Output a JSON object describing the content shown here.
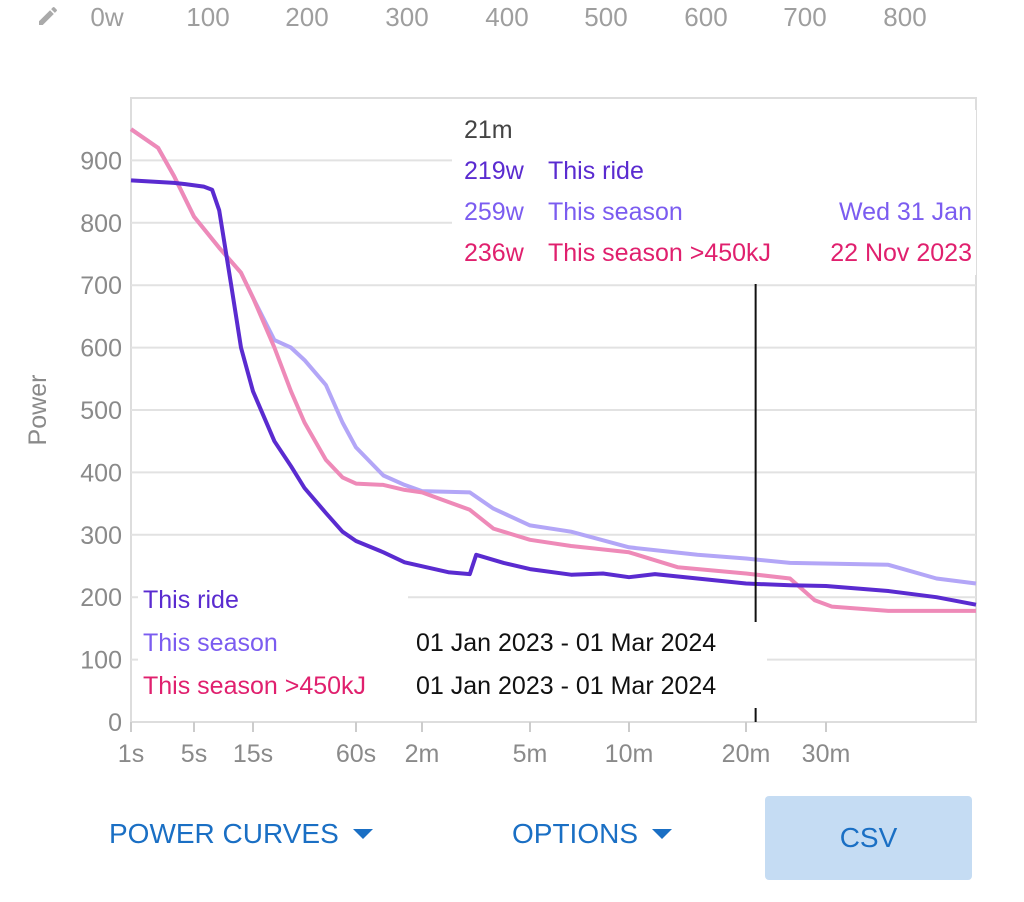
{
  "top_scale": {
    "icon": "pencil-icon",
    "labels": [
      "0w",
      "100",
      "200",
      "300",
      "400",
      "500",
      "600",
      "700",
      "800"
    ]
  },
  "tooltip": {
    "time": "21m",
    "rows": [
      {
        "value": "219w",
        "label": "This ride",
        "date": "",
        "color": "#5a2bd0"
      },
      {
        "value": "259w",
        "label": "This season",
        "date": "Wed 31 Jan",
        "color": "#7b5cf0"
      },
      {
        "value": "236w",
        "label": "This season >450kJ",
        "date": "22 Nov 2023",
        "color": "#e0206e"
      }
    ]
  },
  "legend": [
    {
      "label": "This ride",
      "range": "",
      "color": "#5a2bd0"
    },
    {
      "label": "This season",
      "range": "01 Jan 2023 - 01 Mar 2024",
      "color": "#7b5cf0"
    },
    {
      "label": "This season >450kJ",
      "range": "01 Jan 2023 - 01 Mar 2024",
      "color": "#e0206e"
    }
  ],
  "buttons": {
    "power_curves": "POWER CURVES",
    "options": "OPTIONS",
    "csv": "CSV"
  },
  "chart_data": {
    "type": "line",
    "ylabel": "Power",
    "ylim": [
      0,
      1000
    ],
    "yticks": [
      0,
      100,
      200,
      300,
      400,
      500,
      600,
      700,
      800,
      900
    ],
    "x_scale": "log-like duration (seconds)",
    "xticks": [
      {
        "s": 1,
        "label": "1s"
      },
      {
        "s": 5,
        "label": "5s"
      },
      {
        "s": 15,
        "label": "15s"
      },
      {
        "s": 60,
        "label": "60s"
      },
      {
        "s": 120,
        "label": "2m"
      },
      {
        "s": 300,
        "label": "5m"
      },
      {
        "s": 600,
        "label": "10m"
      },
      {
        "s": 1200,
        "label": "20m"
      },
      {
        "s": 1800,
        "label": "30m"
      }
    ],
    "grid": true,
    "cursor_seconds": 1260,
    "series": [
      {
        "name": "This season",
        "color": "#b3a6f7",
        "points": [
          [
            1,
            950
          ],
          [
            2,
            920
          ],
          [
            3,
            875
          ],
          [
            5,
            810
          ],
          [
            8,
            760
          ],
          [
            12,
            720
          ],
          [
            15,
            680
          ],
          [
            20,
            612
          ],
          [
            25,
            600
          ],
          [
            30,
            580
          ],
          [
            40,
            540
          ],
          [
            50,
            480
          ],
          [
            60,
            440
          ],
          [
            80,
            395
          ],
          [
            100,
            380
          ],
          [
            120,
            370
          ],
          [
            180,
            368
          ],
          [
            220,
            342
          ],
          [
            300,
            315
          ],
          [
            400,
            305
          ],
          [
            600,
            280
          ],
          [
            900,
            268
          ],
          [
            1200,
            262
          ],
          [
            1500,
            255
          ],
          [
            2400,
            252
          ],
          [
            3000,
            230
          ],
          [
            3600,
            222
          ]
        ]
      },
      {
        "name": "This season >450kJ",
        "color": "#ee8ab8",
        "points": [
          [
            1,
            950
          ],
          [
            2,
            920
          ],
          [
            3,
            875
          ],
          [
            5,
            810
          ],
          [
            8,
            760
          ],
          [
            12,
            720
          ],
          [
            15,
            680
          ],
          [
            20,
            600
          ],
          [
            25,
            530
          ],
          [
            30,
            480
          ],
          [
            40,
            420
          ],
          [
            50,
            392
          ],
          [
            60,
            382
          ],
          [
            80,
            380
          ],
          [
            100,
            372
          ],
          [
            120,
            368
          ],
          [
            180,
            340
          ],
          [
            220,
            310
          ],
          [
            300,
            292
          ],
          [
            400,
            282
          ],
          [
            600,
            272
          ],
          [
            800,
            248
          ],
          [
            1200,
            238
          ],
          [
            1500,
            230
          ],
          [
            1700,
            195
          ],
          [
            1850,
            185
          ],
          [
            2400,
            178
          ],
          [
            3600,
            178
          ]
        ]
      },
      {
        "name": "This ride",
        "color": "#5a2bd0",
        "points": [
          [
            1,
            868
          ],
          [
            3,
            864
          ],
          [
            4,
            862
          ],
          [
            6,
            858
          ],
          [
            7,
            853
          ],
          [
            8,
            820
          ],
          [
            10,
            700
          ],
          [
            12,
            600
          ],
          [
            15,
            530
          ],
          [
            20,
            450
          ],
          [
            25,
            410
          ],
          [
            30,
            375
          ],
          [
            40,
            335
          ],
          [
            50,
            305
          ],
          [
            60,
            290
          ],
          [
            80,
            272
          ],
          [
            100,
            256
          ],
          [
            150,
            240
          ],
          [
            180,
            237
          ],
          [
            190,
            268
          ],
          [
            240,
            255
          ],
          [
            300,
            245
          ],
          [
            400,
            236
          ],
          [
            500,
            238
          ],
          [
            600,
            232
          ],
          [
            700,
            237
          ],
          [
            900,
            230
          ],
          [
            1200,
            222
          ],
          [
            1500,
            219
          ],
          [
            1800,
            218
          ],
          [
            2400,
            210
          ],
          [
            3000,
            200
          ],
          [
            3600,
            188
          ]
        ]
      }
    ]
  }
}
